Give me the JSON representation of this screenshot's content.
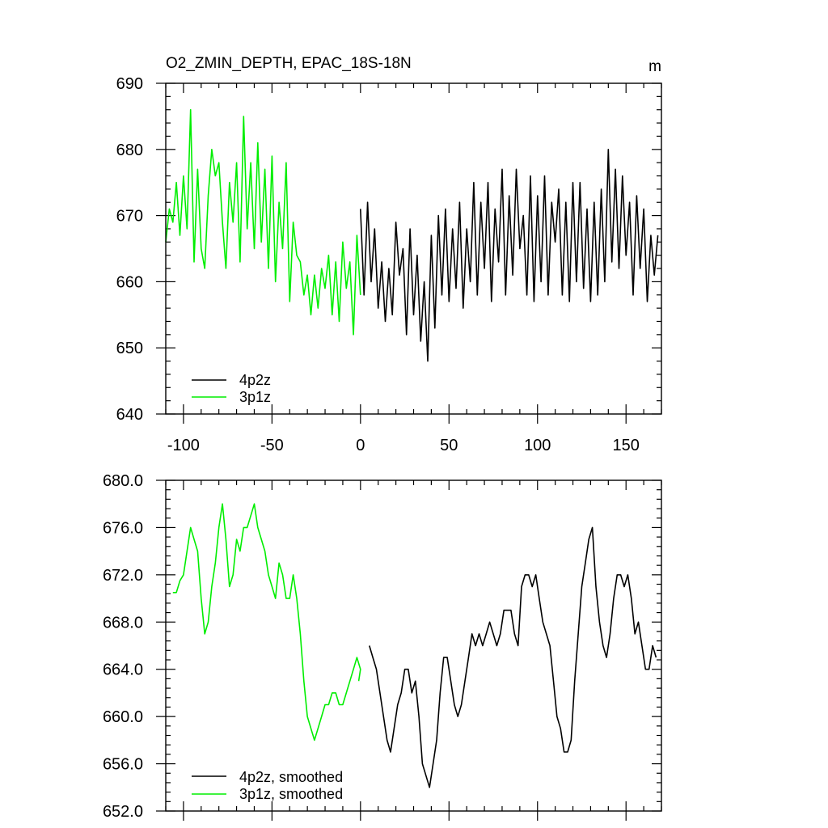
{
  "chart_data": [
    {
      "type": "line",
      "title": "O2_ZMIN_DEPTH, EPAC_18S-18N",
      "units": "m",
      "xlim": [
        -110,
        170
      ],
      "ylim": [
        640,
        690
      ],
      "xticks": [
        -100,
        -50,
        0,
        50,
        100,
        150
      ],
      "xtick_labels": [
        "-100",
        "-50",
        "0",
        "50",
        "100",
        "150"
      ],
      "yticks": [
        640,
        650,
        660,
        670,
        680,
        690
      ],
      "ytick_labels": [
        "640",
        "650",
        "660",
        "670",
        "680",
        "690"
      ],
      "legend_position": "bottom-left",
      "grid": false,
      "series": [
        {
          "name": "4p2z",
          "color": "#000000",
          "x": [
            0,
            2,
            4,
            6,
            8,
            10,
            12,
            14,
            16,
            18,
            20,
            22,
            24,
            26,
            28,
            30,
            32,
            34,
            36,
            38,
            40,
            42,
            44,
            46,
            48,
            50,
            52,
            54,
            56,
            58,
            60,
            62,
            64,
            66,
            68,
            70,
            72,
            74,
            76,
            78,
            80,
            82,
            84,
            86,
            88,
            90,
            92,
            94,
            96,
            98,
            100,
            102,
            104,
            106,
            108,
            110,
            112,
            114,
            116,
            118,
            120,
            122,
            124,
            126,
            128,
            130,
            132,
            134,
            136,
            138,
            140,
            142,
            144,
            146,
            148,
            150,
            152,
            154,
            156,
            158,
            160,
            162,
            164,
            166,
            168
          ],
          "y": [
            671,
            658,
            672,
            660,
            668,
            656,
            663,
            654,
            662,
            655,
            669,
            661,
            665,
            652,
            668,
            655,
            664,
            651,
            660,
            648,
            667,
            653,
            670,
            658,
            671,
            657,
            668,
            659,
            672,
            656,
            668,
            660,
            675,
            658,
            672,
            662,
            675,
            657,
            671,
            663,
            677,
            658,
            673,
            661,
            677,
            665,
            670,
            658,
            676,
            657,
            673,
            660,
            676,
            658,
            672,
            666,
            674,
            658,
            672,
            657,
            675,
            660,
            675,
            659,
            671,
            657,
            672,
            658,
            674,
            660,
            680,
            663,
            677,
            662,
            676,
            664,
            672,
            658,
            673,
            662,
            671,
            657,
            667,
            661,
            667
          ],
          "_order": "approx"
        },
        {
          "name": "3p1z",
          "color": "#00ee00",
          "x": [
            -110,
            -108,
            -106,
            -104,
            -102,
            -100,
            -98,
            -96,
            -94,
            -92,
            -90,
            -88,
            -86,
            -84,
            -82,
            -80,
            -78,
            -76,
            -74,
            -72,
            -70,
            -68,
            -66,
            -64,
            -62,
            -60,
            -58,
            -56,
            -54,
            -52,
            -50,
            -48,
            -46,
            -44,
            -42,
            -40,
            -38,
            -36,
            -34,
            -32,
            -30,
            -28,
            -26,
            -24,
            -22,
            -20,
            -18,
            -16,
            -14,
            -12,
            -10,
            -8,
            -6,
            -4,
            -2,
            0
          ],
          "y": [
            666,
            671,
            669,
            675,
            667,
            676,
            668,
            686,
            663,
            677,
            665,
            662,
            673,
            680,
            676,
            678,
            669,
            662,
            675,
            669,
            678,
            663,
            685,
            668,
            678,
            665,
            681,
            666,
            677,
            662,
            679,
            660,
            672,
            665,
            678,
            657,
            669,
            664,
            663,
            658,
            661,
            655,
            661,
            656,
            662,
            659,
            664,
            655,
            663,
            654,
            666,
            659,
            663,
            652,
            667,
            658
          ]
        }
      ]
    },
    {
      "type": "line",
      "title": "",
      "xlim": [
        -110,
        170
      ],
      "ylim": [
        652,
        680
      ],
      "xticks": [
        -100,
        -50,
        0,
        50,
        100,
        150
      ],
      "yticks": [
        652,
        656,
        660,
        664,
        668,
        672,
        676,
        680
      ],
      "ytick_labels": [
        "652.0",
        "656.0",
        "660.0",
        "664.0",
        "668.0",
        "672.0",
        "676.0",
        "680.0"
      ],
      "legend_position": "bottom-left",
      "grid": false,
      "series": [
        {
          "name": "4p2z, smoothed",
          "color": "#000000",
          "x": [
            5,
            7,
            9,
            11,
            13,
            15,
            17,
            19,
            21,
            23,
            25,
            27,
            29,
            31,
            33,
            35,
            37,
            39,
            41,
            43,
            45,
            47,
            49,
            51,
            53,
            55,
            57,
            59,
            61,
            63,
            65,
            67,
            69,
            71,
            73,
            75,
            77,
            79,
            81,
            83,
            85,
            87,
            89,
            91,
            93,
            95,
            97,
            99,
            101,
            103,
            105,
            107,
            109,
            111,
            113,
            115,
            117,
            119,
            121,
            123,
            125,
            127,
            129,
            131,
            133,
            135,
            137,
            139,
            141,
            143,
            145,
            147,
            149,
            151,
            153,
            155,
            157,
            159,
            161,
            163,
            165,
            167
          ],
          "y": [
            666,
            665,
            664,
            662,
            660,
            658,
            657,
            659,
            661,
            662,
            664,
            664,
            662,
            663,
            660,
            656,
            655,
            654,
            656,
            658,
            662,
            665,
            665,
            663,
            661,
            660,
            661,
            663,
            665,
            667,
            666,
            667,
            666,
            667,
            668,
            667,
            666,
            667,
            669,
            669,
            669,
            667,
            666,
            671,
            672,
            672,
            671,
            672,
            670,
            668,
            667,
            666,
            663,
            660,
            659,
            657,
            657,
            658,
            663,
            667,
            671,
            673,
            675,
            676,
            671,
            668,
            666,
            665,
            667,
            670,
            672,
            672,
            671,
            672,
            670,
            667,
            668,
            666,
            664,
            664,
            666,
            665
          ]
        },
        {
          "name": "3p1z, smoothed",
          "color": "#00ee00",
          "x": [
            -106,
            -104,
            -102,
            -100,
            -98,
            -96,
            -94,
            -92,
            -90,
            -88,
            -86,
            -84,
            -82,
            -80,
            -78,
            -76,
            -74,
            -72,
            -70,
            -68,
            -66,
            -64,
            -62,
            -60,
            -58,
            -56,
            -54,
            -52,
            -50,
            -48,
            -46,
            -44,
            -42,
            -40,
            -38,
            -36,
            -34,
            -32,
            -30,
            -28,
            -26,
            -24,
            -22,
            -20,
            -18,
            -16,
            -14,
            -12,
            -10,
            -8,
            -6,
            -4,
            -2,
            0,
            -1
          ],
          "y": [
            670.5,
            670.5,
            671.5,
            672,
            674,
            676,
            675,
            674,
            670,
            667,
            668,
            671,
            673,
            676,
            678,
            675,
            671,
            672,
            675,
            674,
            676,
            676,
            677,
            678,
            676,
            675,
            674,
            672,
            671,
            670,
            673,
            672,
            670,
            670,
            672,
            670,
            667,
            663,
            660,
            659,
            658,
            659,
            660,
            661,
            661,
            662,
            662,
            661,
            661,
            662,
            663,
            664,
            665,
            664,
            663
          ]
        }
      ]
    }
  ]
}
